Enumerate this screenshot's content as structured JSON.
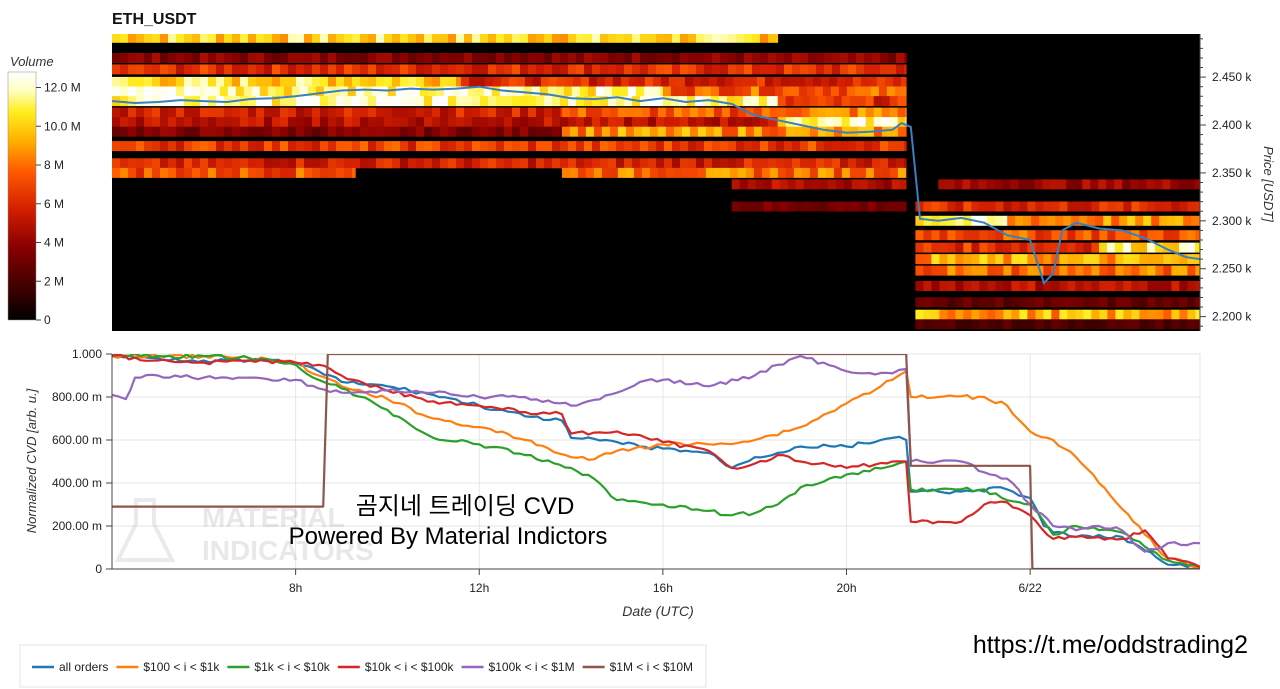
{
  "chart_data": [
    {
      "type": "heatmap",
      "title": "ETH_USDT",
      "colorbar": {
        "label": "Volume",
        "ticks": [
          "12.0 M",
          "10.0 M",
          "8 M",
          "6 M",
          "4 M",
          "2 M",
          "0"
        ],
        "tick_values": [
          12,
          10,
          8,
          6,
          4,
          2,
          0
        ],
        "range": [
          0,
          12.8
        ],
        "colormap": [
          "#000000",
          "#3a0000",
          "#8b0000",
          "#d42000",
          "#ff5a00",
          "#ffae00",
          "#ffee20",
          "#ffffc8",
          "#ffffff"
        ]
      },
      "ylabel": "Price [USDT]",
      "ylim": [
        2185,
        2495
      ],
      "ytick_values": [
        2450,
        2400,
        2350,
        2300,
        2250,
        2200
      ],
      "yticks": [
        "2.450 k",
        "2.400 k",
        "2.350 k",
        "2.300 k",
        "2.250 k",
        "2.200 k"
      ],
      "xlim": [
        4,
        27.7
      ],
      "price_series": {
        "color": "#3a7fc1",
        "x": [
          4.0,
          4.5,
          5.0,
          5.5,
          6.0,
          6.5,
          7.0,
          7.5,
          8.0,
          8.5,
          9.0,
          9.5,
          10.0,
          10.5,
          11.0,
          11.5,
          12.0,
          12.5,
          13.0,
          13.5,
          14.0,
          14.5,
          15.0,
          15.5,
          16.0,
          16.5,
          17.0,
          17.5,
          18.0,
          18.5,
          19.0,
          19.5,
          20.0,
          20.5,
          21.0,
          21.2,
          21.4,
          21.6,
          22.0,
          22.5,
          23.0,
          23.5,
          24.0,
          24.3,
          24.5,
          24.7,
          25.0,
          25.5,
          26.0,
          26.5,
          27.0,
          27.4,
          27.7
        ],
        "y": [
          2425,
          2423,
          2424,
          2426,
          2425,
          2424,
          2427,
          2428,
          2430,
          2433,
          2436,
          2437,
          2436,
          2438,
          2437,
          2438,
          2440,
          2436,
          2434,
          2432,
          2428,
          2427,
          2429,
          2425,
          2428,
          2424,
          2426,
          2422,
          2410,
          2405,
          2400,
          2395,
          2392,
          2393,
          2395,
          2402,
          2398,
          2302,
          2300,
          2303,
          2298,
          2285,
          2280,
          2235,
          2245,
          2290,
          2298,
          2292,
          2290,
          2282,
          2270,
          2262,
          2260
        ]
      },
      "levels": [
        {
          "price": 2491,
          "segments": [
            [
              4,
              18.5,
              9.2
            ]
          ]
        },
        {
          "price": 2470,
          "segments": [
            [
              4,
              21.3,
              3.2
            ]
          ]
        },
        {
          "price": 2458,
          "segments": [
            [
              4,
              21.3,
              5.2
            ]
          ]
        },
        {
          "price": 2445,
          "segments": [
            [
              4,
              11.6,
              9.4
            ],
            [
              11.6,
              21.3,
              5.0
            ]
          ]
        },
        {
          "price": 2435,
          "segments": [
            [
              4,
              6,
              12.6
            ],
            [
              6,
              16,
              10.8
            ],
            [
              16,
              21.3,
              6.4
            ]
          ]
        },
        {
          "price": 2425,
          "segments": [
            [
              4,
              16,
              11.2
            ],
            [
              16,
              18.5,
              10.8
            ],
            [
              18.5,
              21.3,
              5.2
            ]
          ]
        },
        {
          "price": 2413,
          "segments": [
            [
              4,
              13.8,
              4.8
            ],
            [
              13.8,
              18.5,
              6.2
            ],
            [
              18.5,
              21.3,
              7.2
            ]
          ]
        },
        {
          "price": 2403,
          "segments": [
            [
              4,
              18.5,
              4.2
            ],
            [
              18.5,
              21.3,
              11.0
            ]
          ]
        },
        {
          "price": 2393,
          "segments": [
            [
              4,
              13.8,
              3.0
            ],
            [
              13.8,
              21.3,
              7.4
            ]
          ]
        },
        {
          "price": 2378,
          "segments": [
            [
              4,
              21.3,
              5.6
            ]
          ]
        },
        {
          "price": 2360,
          "segments": [
            [
              4,
              21.3,
              4.8
            ]
          ]
        },
        {
          "price": 2350,
          "segments": [
            [
              4,
              9.3,
              6.2
            ],
            [
              13.8,
              21.3,
              6.8
            ]
          ]
        },
        {
          "price": 2338,
          "segments": [
            [
              17.5,
              21.3,
              4.0
            ],
            [
              22,
              27.7,
              3.6
            ]
          ]
        },
        {
          "price": 2315,
          "segments": [
            [
              17.5,
              21.3,
              2.8
            ],
            [
              21.5,
              27.7,
              5.0
            ]
          ]
        },
        {
          "price": 2300,
          "segments": [
            [
              21.5,
              23.5,
              10.4
            ],
            [
              23.5,
              27.7,
              7.4
            ]
          ]
        },
        {
          "price": 2285,
          "segments": [
            [
              21.5,
              27.7,
              6.2
            ]
          ]
        },
        {
          "price": 2272,
          "segments": [
            [
              21.5,
              25.5,
              5.4
            ],
            [
              25.5,
              27.7,
              10.2
            ]
          ]
        },
        {
          "price": 2260,
          "segments": [
            [
              21.5,
              27.7,
              7.8
            ]
          ]
        },
        {
          "price": 2248,
          "segments": [
            [
              21.5,
              27.7,
              6.8
            ]
          ]
        },
        {
          "price": 2232,
          "segments": [
            [
              21.5,
              27.7,
              4.2
            ]
          ]
        },
        {
          "price": 2215,
          "segments": [
            [
              21.5,
              27.7,
              2.4
            ]
          ]
        },
        {
          "price": 2202,
          "segments": [
            [
              21.5,
              27.7,
              8.0
            ]
          ]
        },
        {
          "price": 2192,
          "segments": [
            [
              21.5,
              27.7,
              2.0
            ]
          ]
        }
      ]
    },
    {
      "type": "line",
      "xlabel": "Date (UTC)",
      "ylabel": "Normalized CVD [arb. u.]",
      "xlim": [
        4,
        27.7
      ],
      "ylim": [
        0,
        1.0
      ],
      "xtick_values": [
        8,
        12,
        16,
        20,
        24
      ],
      "xticks": [
        "8h",
        "12h",
        "16h",
        "20h",
        "6/22"
      ],
      "ytick_values": [
        0,
        0.2,
        0.4,
        0.6,
        0.8,
        1.0
      ],
      "yticks": [
        "0",
        "200.00 m",
        "400.00 m",
        "600.00 m",
        "800.00 m",
        "1.000"
      ],
      "legend_position": "bottom-left",
      "series": [
        {
          "name": "all orders",
          "color": "#1f77b4",
          "x": [
            4.0,
            5.0,
            6.0,
            7.0,
            8.0,
            8.5,
            9.0,
            10.0,
            11.0,
            12.0,
            13.0,
            13.8,
            14.0,
            15.0,
            15.5,
            16.0,
            17.0,
            17.5,
            18.0,
            18.5,
            19.0,
            20.0,
            21.0,
            21.3,
            21.4,
            22.0,
            22.5,
            23.0,
            23.2,
            23.5,
            24.0,
            24.3,
            24.5,
            25.0,
            26.0,
            27.0,
            27.7
          ],
          "y": [
            0.99,
            0.98,
            0.97,
            0.97,
            0.96,
            0.92,
            0.87,
            0.85,
            0.81,
            0.76,
            0.71,
            0.69,
            0.61,
            0.59,
            0.57,
            0.56,
            0.54,
            0.47,
            0.52,
            0.54,
            0.57,
            0.57,
            0.61,
            0.6,
            0.36,
            0.36,
            0.36,
            0.36,
            0.38,
            0.37,
            0.33,
            0.2,
            0.17,
            0.15,
            0.15,
            0.02,
            0.01
          ]
        },
        {
          "name": "$100 < i < $1k",
          "color": "#ff7f0e",
          "x": [
            4.0,
            5.0,
            6.0,
            7.0,
            8.0,
            8.5,
            9.0,
            10.0,
            11.0,
            12.0,
            13.0,
            14.0,
            14.5,
            15.0,
            16.0,
            17.0,
            18.0,
            19.0,
            20.0,
            21.0,
            21.3,
            21.4,
            22.0,
            23.0,
            23.5,
            24.0,
            24.5,
            25.0,
            25.5,
            26.0,
            26.5,
            27.0,
            27.7
          ],
          "y": [
            0.99,
            0.99,
            0.99,
            0.98,
            0.96,
            0.9,
            0.85,
            0.79,
            0.7,
            0.66,
            0.6,
            0.52,
            0.51,
            0.55,
            0.58,
            0.58,
            0.6,
            0.66,
            0.77,
            0.88,
            0.92,
            0.8,
            0.8,
            0.8,
            0.76,
            0.64,
            0.6,
            0.52,
            0.4,
            0.28,
            0.16,
            0.05,
            0.01
          ]
        },
        {
          "name": "$1k < i < $10k",
          "color": "#2ca02c",
          "x": [
            4.0,
            5.0,
            6.0,
            7.0,
            8.0,
            8.5,
            9.0,
            10.0,
            10.5,
            11.0,
            12.0,
            13.0,
            14.0,
            14.5,
            15.0,
            16.0,
            17.0,
            17.5,
            18.0,
            18.5,
            19.0,
            20.0,
            21.0,
            21.3,
            21.4,
            22.0,
            22.5,
            23.0,
            23.5,
            24.0,
            24.5,
            25.0,
            26.0,
            27.0,
            27.7
          ],
          "y": [
            1.0,
            0.99,
            0.99,
            0.98,
            0.95,
            0.88,
            0.84,
            0.74,
            0.67,
            0.61,
            0.58,
            0.53,
            0.47,
            0.42,
            0.32,
            0.3,
            0.27,
            0.25,
            0.26,
            0.3,
            0.38,
            0.44,
            0.48,
            0.5,
            0.37,
            0.37,
            0.37,
            0.37,
            0.32,
            0.3,
            0.16,
            0.2,
            0.17,
            0.04,
            0.01
          ]
        },
        {
          "name": "$10k < i < $100k",
          "color": "#d62728",
          "x": [
            4.0,
            5.0,
            6.0,
            7.0,
            8.0,
            8.5,
            9.0,
            10.0,
            11.0,
            12.0,
            13.0,
            13.8,
            14.0,
            15.0,
            16.0,
            17.0,
            17.5,
            18.0,
            18.5,
            19.0,
            20.0,
            21.0,
            21.3,
            21.4,
            22.0,
            22.5,
            23.0,
            23.5,
            24.0,
            24.5,
            25.0,
            26.0,
            26.5,
            27.0,
            27.7
          ],
          "y": [
            0.99,
            0.97,
            0.96,
            0.97,
            0.96,
            0.95,
            0.9,
            0.83,
            0.78,
            0.76,
            0.73,
            0.72,
            0.63,
            0.64,
            0.59,
            0.55,
            0.47,
            0.49,
            0.53,
            0.5,
            0.47,
            0.5,
            0.5,
            0.22,
            0.22,
            0.22,
            0.3,
            0.31,
            0.25,
            0.14,
            0.15,
            0.14,
            0.18,
            0.05,
            0.01
          ]
        },
        {
          "name": "$100k < i < $1M",
          "color": "#9467bd",
          "x": [
            4.0,
            4.3,
            4.5,
            5.0,
            6.0,
            7.0,
            8.0,
            8.5,
            9.0,
            10.0,
            11.0,
            12.0,
            13.0,
            14.0,
            15.0,
            15.5,
            16.0,
            17.0,
            18.0,
            18.5,
            19.0,
            20.0,
            21.0,
            21.3,
            21.4,
            22.0,
            22.5,
            23.0,
            23.5,
            24.0,
            24.5,
            25.0,
            25.5,
            26.0,
            26.5,
            27.0,
            27.7
          ],
          "y": [
            0.81,
            0.79,
            0.89,
            0.9,
            0.89,
            0.89,
            0.88,
            0.84,
            0.82,
            0.83,
            0.82,
            0.8,
            0.8,
            0.76,
            0.82,
            0.87,
            0.88,
            0.85,
            0.9,
            0.95,
            0.99,
            0.92,
            0.91,
            0.93,
            0.5,
            0.5,
            0.5,
            0.45,
            0.42,
            0.3,
            0.2,
            0.18,
            0.2,
            0.18,
            0.08,
            0.12,
            0.12
          ]
        },
        {
          "name": "$1M < i < $10M",
          "color": "#8c564b",
          "step": true,
          "x": [
            4.0,
            8.6,
            8.7,
            21.3,
            21.4,
            24.0,
            24.05,
            27.7
          ],
          "y": [
            0.29,
            0.29,
            1.0,
            1.0,
            0.48,
            0.48,
            0.0,
            0.0
          ]
        }
      ]
    }
  ],
  "watermark": {
    "logo_text": [
      "MATERIAL",
      "INDICATORS"
    ],
    "overlay_title": "곰지네 트레이딩 CVD",
    "overlay_subtitle": "Powered By Material Indictors"
  },
  "footer_link": "https://t.me/oddstrading2",
  "colors": {
    "grid": "#e6e6e6",
    "axis": "#444444",
    "heatmap_bg": "#000000"
  }
}
